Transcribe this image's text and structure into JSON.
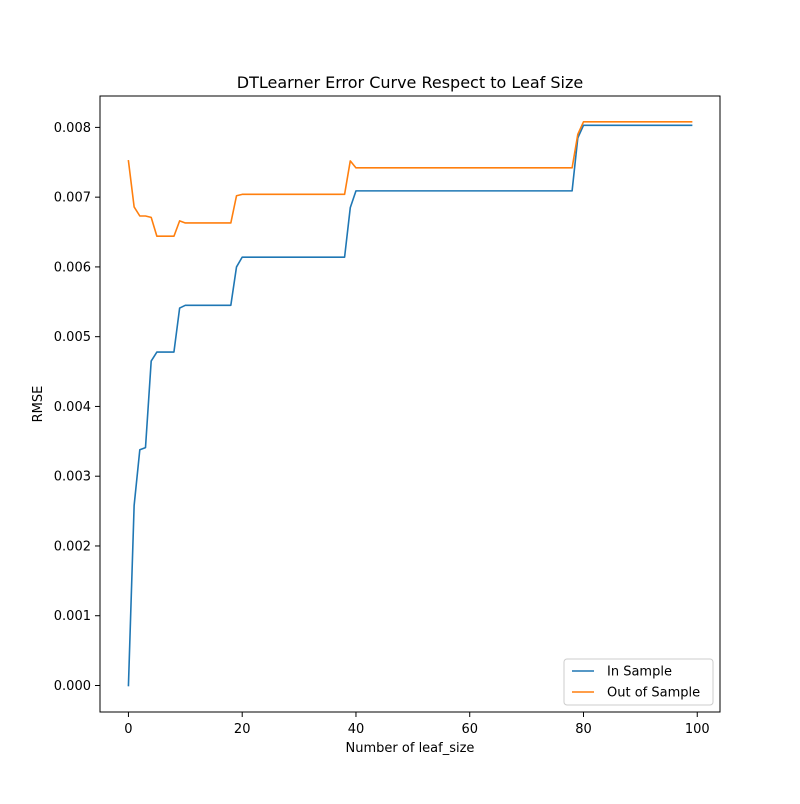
{
  "chart_data": {
    "type": "line",
    "title": "DTLearner Error Curve Respect to Leaf Size",
    "xlabel": "Number of leaf_size",
    "ylabel": "RMSE",
    "xlim": [
      -5,
      104
    ],
    "ylim": [
      -0.00038,
      0.00845
    ],
    "xticks": [
      0,
      20,
      40,
      60,
      80,
      100
    ],
    "xtick_labels": [
      "0",
      "20",
      "40",
      "60",
      "80",
      "100"
    ],
    "yticks": [
      0,
      0.001,
      0.002,
      0.003,
      0.004,
      0.005,
      0.006,
      0.007,
      0.008
    ],
    "ytick_labels": [
      "0.000",
      "0.001",
      "0.002",
      "0.003",
      "0.004",
      "0.005",
      "0.006",
      "0.007",
      "0.008"
    ],
    "grid": false,
    "legend_position": "lower-right",
    "series": [
      {
        "name": "In Sample",
        "color": "#1f77b4",
        "points": [
          [
            0,
            0.0
          ],
          [
            1,
            0.00258
          ],
          [
            2,
            0.00338
          ],
          [
            3,
            0.00341
          ],
          [
            4,
            0.00465
          ],
          [
            5,
            0.00478
          ],
          [
            8,
            0.00478
          ],
          [
            9,
            0.00541
          ],
          [
            10,
            0.00545
          ],
          [
            18,
            0.00545
          ],
          [
            19,
            0.006
          ],
          [
            20,
            0.00614
          ],
          [
            38,
            0.00614
          ],
          [
            39,
            0.00685
          ],
          [
            40,
            0.00709
          ],
          [
            78,
            0.00709
          ],
          [
            79,
            0.00785
          ],
          [
            80,
            0.00803
          ],
          [
            99,
            0.00803
          ]
        ]
      },
      {
        "name": "Out of Sample",
        "color": "#ff7f0e",
        "points": [
          [
            0,
            0.00752
          ],
          [
            1,
            0.00686
          ],
          [
            2,
            0.00673
          ],
          [
            3,
            0.00673
          ],
          [
            4,
            0.00671
          ],
          [
            5,
            0.00644
          ],
          [
            8,
            0.00644
          ],
          [
            9,
            0.00666
          ],
          [
            10,
            0.00663
          ],
          [
            18,
            0.00663
          ],
          [
            19,
            0.00702
          ],
          [
            20,
            0.00704
          ],
          [
            38,
            0.00704
          ],
          [
            39,
            0.00752
          ],
          [
            40,
            0.00742
          ],
          [
            78,
            0.00742
          ],
          [
            79,
            0.0079
          ],
          [
            80,
            0.00808
          ],
          [
            99,
            0.00808
          ]
        ]
      }
    ]
  }
}
